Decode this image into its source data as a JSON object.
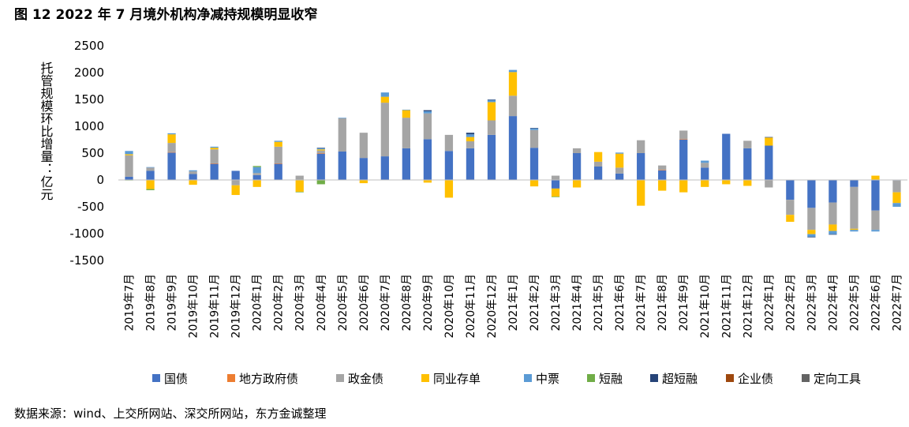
{
  "figure": {
    "title": "图 12  2022 年 7 月境外机构净减持规模明显收窄",
    "source": "数据来源：wind、上交所网站、深交所网站，东方金诚整理"
  },
  "chart_data": {
    "type": "bar",
    "stacked": true,
    "ylabel": "托管规模环比增量：亿元",
    "ylim": [
      -1500,
      2500
    ],
    "yticks": [
      -1500,
      -1000,
      -500,
      0,
      500,
      1000,
      1500,
      2000,
      2500
    ],
    "grid": false,
    "legend_position": "bottom",
    "categories": [
      "2019年7月",
      "2019年8月",
      "2019年9月",
      "2019年10月",
      "2019年11月",
      "2019年12月",
      "2020年1月",
      "2020年2月",
      "2020年3月",
      "2020年4月",
      "2020年5月",
      "2020年6月",
      "2020年7月",
      "2020年8月",
      "2020年9月",
      "2020年10月",
      "2020年11月",
      "2020年12月",
      "2021年1月",
      "2021年2月",
      "2021年3月",
      "2021年4月",
      "2021年5月",
      "2021年6月",
      "2021年7月",
      "2021年8月",
      "2021年9月",
      "2021年10月",
      "2021年11月",
      "2021年12月",
      "2022年1月",
      "2022年2月",
      "2022年3月",
      "2022年4月",
      "2022年5月",
      "2022年6月",
      "2022年7月"
    ],
    "series": [
      {
        "name": "国债",
        "color": "#4472C4",
        "values": [
          60,
          170,
          510,
          110,
          300,
          170,
          90,
          300,
          0,
          490,
          530,
          410,
          440,
          590,
          760,
          540,
          590,
          840,
          1190,
          600,
          -160,
          500,
          250,
          120,
          500,
          180,
          750,
          230,
          860,
          590,
          640,
          -370,
          -520,
          -420,
          -130,
          -570,
          -10
        ]
      },
      {
        "name": "地方政府债",
        "color": "#ED7D31",
        "values": [
          0,
          0,
          10,
          0,
          10,
          0,
          0,
          10,
          0,
          10,
          0,
          0,
          0,
          0,
          0,
          0,
          0,
          0,
          0,
          0,
          0,
          0,
          0,
          0,
          0,
          10,
          10,
          0,
          0,
          0,
          0,
          0,
          0,
          0,
          0,
          0,
          0
        ]
      },
      {
        "name": "政金债",
        "color": "#A5A5A5",
        "values": [
          400,
          60,
          170,
          50,
          260,
          -100,
          40,
          310,
          80,
          50,
          620,
          470,
          1000,
          570,
          480,
          300,
          130,
          270,
          380,
          330,
          80,
          90,
          90,
          110,
          240,
          80,
          160,
          90,
          0,
          140,
          -140,
          -280,
          -410,
          -410,
          -780,
          -360,
          -220
        ]
      },
      {
        "name": "同业存单",
        "color": "#FFC000",
        "values": [
          20,
          -170,
          160,
          -90,
          30,
          -180,
          -130,
          90,
          -220,
          20,
          0,
          -60,
          110,
          140,
          -50,
          -330,
          80,
          340,
          440,
          -120,
          -150,
          -140,
          180,
          260,
          -480,
          -200,
          -230,
          -130,
          -80,
          -110,
          150,
          -130,
          -80,
          -120,
          -20,
          80,
          -200
        ]
      },
      {
        "name": "中票",
        "color": "#5B9BD5",
        "values": [
          60,
          10,
          20,
          20,
          20,
          0,
          110,
          20,
          0,
          20,
          10,
          0,
          80,
          10,
          40,
          0,
          50,
          40,
          40,
          30,
          0,
          0,
          0,
          20,
          0,
          0,
          0,
          40,
          0,
          0,
          0,
          0,
          -50,
          -60,
          -30,
          -30,
          -70
        ]
      },
      {
        "name": "短融",
        "color": "#70AD47",
        "values": [
          -10,
          -20,
          0,
          0,
          0,
          0,
          20,
          0,
          -10,
          -80,
          0,
          0,
          0,
          0,
          0,
          0,
          0,
          0,
          0,
          0,
          -10,
          0,
          0,
          0,
          0,
          0,
          0,
          0,
          0,
          0,
          0,
          0,
          0,
          0,
          0,
          0,
          0
        ]
      },
      {
        "name": "超短融",
        "color": "#264478",
        "values": [
          0,
          0,
          0,
          0,
          0,
          0,
          0,
          0,
          0,
          10,
          0,
          0,
          0,
          0,
          20,
          0,
          30,
          10,
          0,
          10,
          0,
          0,
          0,
          0,
          0,
          0,
          0,
          0,
          0,
          0,
          10,
          0,
          -10,
          -10,
          0,
          0,
          0
        ]
      },
      {
        "name": "企业债",
        "color": "#9E480E",
        "values": [
          0,
          0,
          0,
          0,
          0,
          0,
          0,
          0,
          0,
          0,
          0,
          0,
          0,
          0,
          0,
          0,
          0,
          0,
          0,
          0,
          0,
          0,
          0,
          0,
          0,
          0,
          0,
          0,
          0,
          0,
          0,
          0,
          0,
          0,
          0,
          0,
          0
        ]
      },
      {
        "name": "定向工具",
        "color": "#636363",
        "values": [
          0,
          0,
          0,
          0,
          0,
          0,
          0,
          0,
          0,
          0,
          0,
          0,
          0,
          0,
          0,
          0,
          0,
          0,
          0,
          0,
          0,
          0,
          0,
          0,
          0,
          0,
          0,
          0,
          0,
          0,
          0,
          0,
          0,
          0,
          0,
          0,
          0
        ]
      }
    ]
  }
}
